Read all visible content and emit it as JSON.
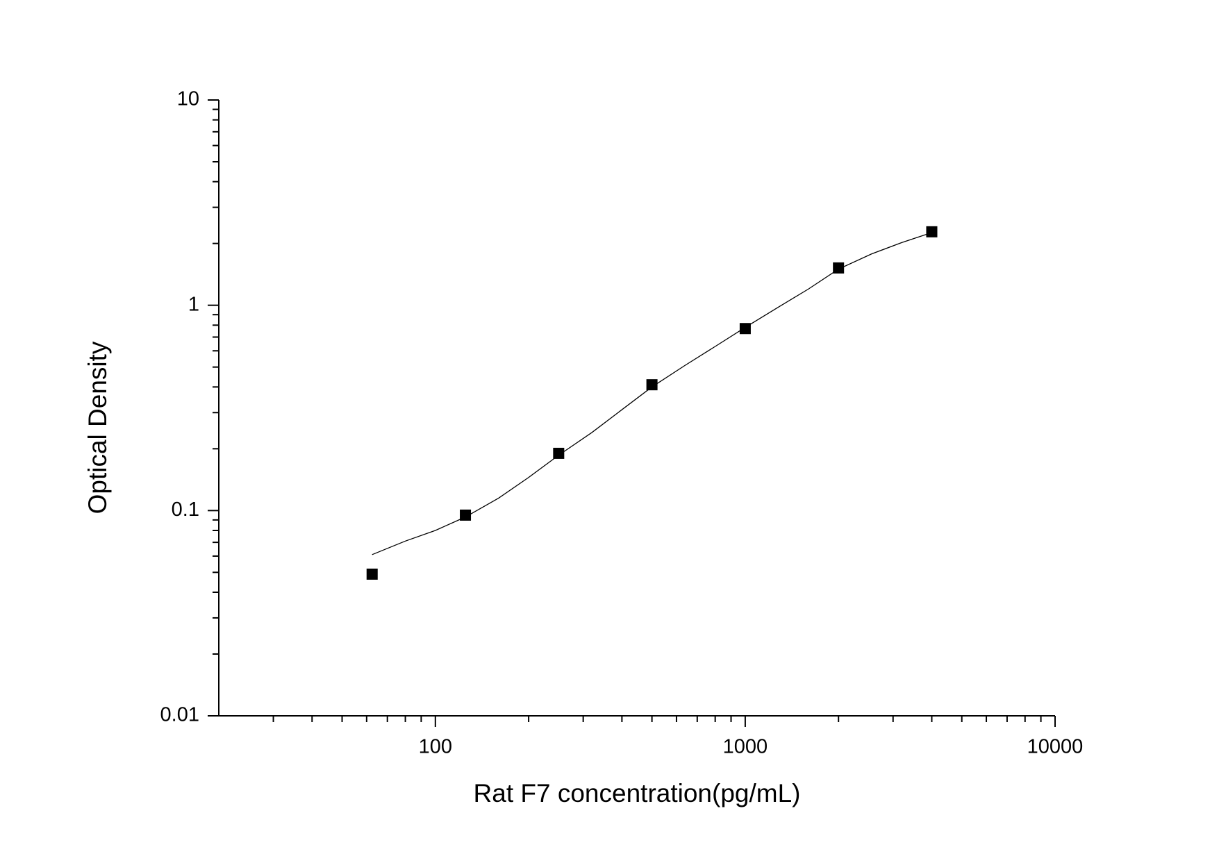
{
  "chart_data": {
    "type": "scatter",
    "x_label": "Rat F7 concentration(pg/mL)",
    "y_label": "Optical Density",
    "xscale": "log",
    "yscale": "log",
    "xlim": [
      20,
      10000
    ],
    "ylim": [
      0.01,
      10
    ],
    "xticks": [
      100,
      1000,
      10000
    ],
    "yticks": [
      0.01,
      0.1,
      1,
      10
    ],
    "x_minor_ticks": [
      30,
      40,
      50,
      60,
      70,
      80,
      90,
      200,
      300,
      400,
      500,
      600,
      700,
      800,
      900,
      2000,
      3000,
      4000,
      5000,
      6000,
      7000,
      8000,
      9000
    ],
    "y_minor_ticks": [
      0.02,
      0.03,
      0.04,
      0.05,
      0.06,
      0.07,
      0.08,
      0.09,
      0.2,
      0.3,
      0.4,
      0.5,
      0.6,
      0.7,
      0.8,
      0.9,
      2,
      3,
      4,
      5,
      6,
      7,
      8,
      9
    ],
    "series": [
      {
        "type": "scatter",
        "color": "#000000",
        "x": [
          62.5,
          125,
          250,
          500,
          1000,
          2000,
          4000
        ],
        "values": [
          0.049,
          0.095,
          0.19,
          0.41,
          0.77,
          1.52,
          2.28
        ]
      },
      {
        "type": "line",
        "color": "#000000",
        "x": [
          62.5,
          80,
          100,
          125,
          160,
          200,
          250,
          320,
          400,
          500,
          640,
          800,
          1000,
          1280,
          1600,
          2000,
          2560,
          3200,
          4000
        ],
        "values": [
          0.061,
          0.071,
          0.08,
          0.093,
          0.115,
          0.145,
          0.186,
          0.24,
          0.31,
          0.4,
          0.51,
          0.63,
          0.78,
          0.98,
          1.2,
          1.5,
          1.78,
          2.02,
          2.26
        ]
      }
    ]
  }
}
